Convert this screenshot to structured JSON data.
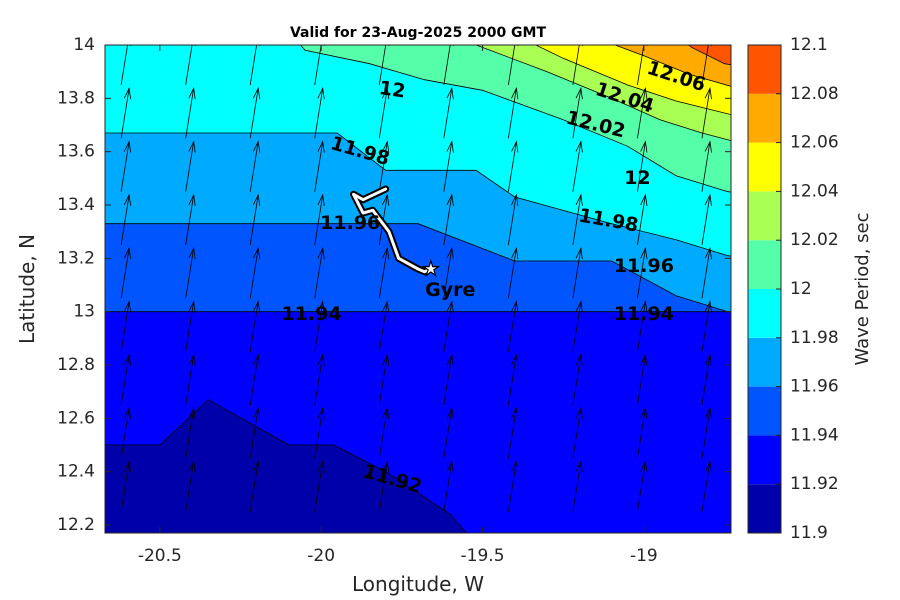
{
  "chart_data": {
    "type": "heatmap",
    "title": "Valid for 23-Aug-2025 2000 GMT",
    "xlabel": "Longitude, W",
    "ylabel": "Latitude, N",
    "colorbar_label": "Wave Period, sec",
    "xlim": [
      -20.67,
      -18.73
    ],
    "ylim": [
      12.17,
      14.0
    ],
    "xticks": [
      "-20.5",
      "-20",
      "-19.5",
      "-19"
    ],
    "xtick_values": [
      -20.5,
      -20,
      -19.5,
      -19
    ],
    "yticks": [
      "12.2",
      "12.4",
      "12.6",
      "12.8",
      "13",
      "13.2",
      "13.4",
      "13.6",
      "13.8",
      "14"
    ],
    "ytick_values": [
      12.2,
      12.4,
      12.6,
      12.8,
      13.0,
      13.2,
      13.4,
      13.6,
      13.8,
      14.0
    ],
    "colorbar": {
      "levels": [
        11.9,
        11.92,
        11.94,
        11.96,
        11.98,
        12.0,
        12.02,
        12.04,
        12.06,
        12.08,
        12.1
      ],
      "level_labels": [
        "11.9",
        "11.92",
        "11.94",
        "11.96",
        "11.98",
        "12",
        "12.02",
        "12.04",
        "12.06",
        "12.08",
        "12.1"
      ],
      "colors": [
        "#0000aa",
        "#0000ff",
        "#0055ff",
        "#00aaff",
        "#00ffff",
        "#55ffaa",
        "#aaff55",
        "#ffff00",
        "#ffaa00",
        "#ff5500"
      ]
    },
    "contour_labels": [
      {
        "text": "12.06",
        "lon": -18.9,
        "lat": 13.88,
        "angle": 18
      },
      {
        "text": "12.04",
        "lon": -19.06,
        "lat": 13.8,
        "angle": 18
      },
      {
        "text": "12.02",
        "lon": -19.15,
        "lat": 13.7,
        "angle": 14
      },
      {
        "text": "12",
        "lon": -19.78,
        "lat": 13.83,
        "angle": 8
      },
      {
        "text": "12",
        "lon": -19.02,
        "lat": 13.5,
        "angle": 0
      },
      {
        "text": "11.98",
        "lon": -19.88,
        "lat": 13.6,
        "angle": 16
      },
      {
        "text": "11.98",
        "lon": -19.11,
        "lat": 13.34,
        "angle": 10
      },
      {
        "text": "11.96",
        "lon": -19.91,
        "lat": 13.33,
        "angle": 0
      },
      {
        "text": "11.96",
        "lon": -19.0,
        "lat": 13.17,
        "angle": 0
      },
      {
        "text": "11.94",
        "lon": -20.03,
        "lat": 12.99,
        "angle": 0
      },
      {
        "text": "11.94",
        "lon": -19.0,
        "lat": 12.99,
        "angle": 0
      },
      {
        "text": "11.92",
        "lon": -19.78,
        "lat": 12.37,
        "angle": 16
      }
    ],
    "annotation": {
      "text": "Gyre",
      "lon": -19.6,
      "lat": 13.08
    },
    "track": [
      [
        -19.8,
        13.46
      ],
      [
        -19.87,
        13.42
      ],
      [
        -19.9,
        13.44
      ],
      [
        -19.87,
        13.37
      ],
      [
        -19.84,
        13.38
      ],
      [
        -19.79,
        13.3
      ],
      [
        -19.76,
        13.2
      ],
      [
        -19.7,
        13.16
      ],
      [
        -19.68,
        13.15
      ],
      [
        -19.66,
        13.16
      ]
    ],
    "vector_field": {
      "dx_deg": 0.2,
      "dy_deg": 0.2,
      "direction": "toward NNE",
      "color": "#000000"
    }
  }
}
